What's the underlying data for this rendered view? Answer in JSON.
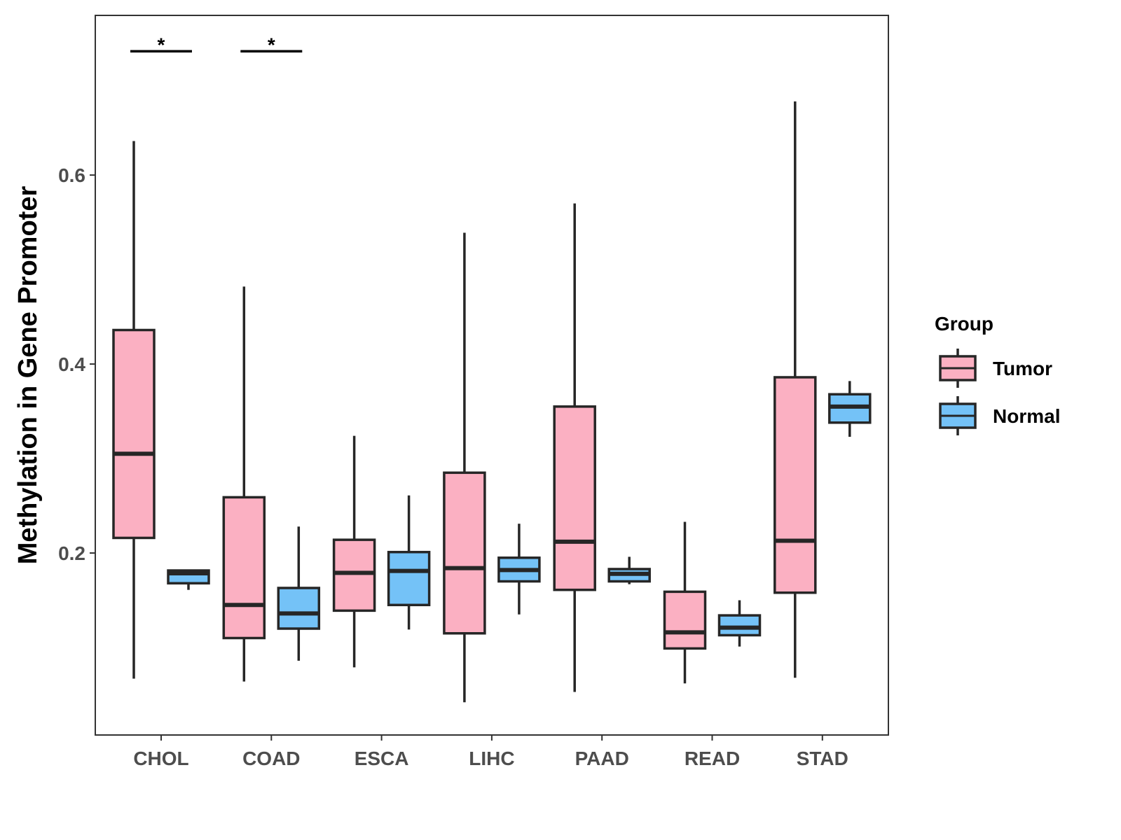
{
  "chart_data": {
    "type": "box",
    "title": "",
    "xlabel": "",
    "ylabel": "Methylation in Gene Promoter",
    "ylim": [
      0.0074,
      0.769
    ],
    "yticks": [
      0.2,
      0.4,
      0.6
    ],
    "ytick_labels": [
      "0.2",
      "0.4",
      "0.6"
    ],
    "categories": [
      "CHOL",
      "COAD",
      "ESCA",
      "LIHC",
      "PAAD",
      "READ",
      "STAD"
    ],
    "legend": {
      "title": "Group",
      "position": "right",
      "entries": [
        "Tumor",
        "Normal"
      ]
    },
    "colors": {
      "Tumor": "#FBB0C2",
      "Normal": "#74C2F7",
      "outline": "#262626"
    },
    "series": [
      {
        "name": "Tumor",
        "boxes": [
          {
            "min": 0.067,
            "q1": 0.216,
            "median": 0.305,
            "q3": 0.436,
            "max": 0.636
          },
          {
            "min": 0.064,
            "q1": 0.11,
            "median": 0.145,
            "q3": 0.259,
            "max": 0.482
          },
          {
            "min": 0.079,
            "q1": 0.139,
            "median": 0.179,
            "q3": 0.214,
            "max": 0.324
          },
          {
            "min": 0.042,
            "q1": 0.115,
            "median": 0.184,
            "q3": 0.285,
            "max": 0.539
          },
          {
            "min": 0.053,
            "q1": 0.161,
            "median": 0.212,
            "q3": 0.355,
            "max": 0.57
          },
          {
            "min": 0.062,
            "q1": 0.099,
            "median": 0.116,
            "q3": 0.159,
            "max": 0.233
          },
          {
            "min": 0.068,
            "q1": 0.158,
            "median": 0.213,
            "q3": 0.386,
            "max": 0.678
          }
        ]
      },
      {
        "name": "Normal",
        "boxes": [
          {
            "min": 0.161,
            "q1": 0.168,
            "median": 0.1785,
            "q3": 0.1815,
            "max": 0.1815
          },
          {
            "min": 0.086,
            "q1": 0.12,
            "median": 0.136,
            "q3": 0.163,
            "max": 0.228
          },
          {
            "min": 0.119,
            "q1": 0.145,
            "median": 0.181,
            "q3": 0.201,
            "max": 0.261
          },
          {
            "min": 0.135,
            "q1": 0.17,
            "median": 0.182,
            "q3": 0.195,
            "max": 0.231
          },
          {
            "min": 0.167,
            "q1": 0.17,
            "median": 0.178,
            "q3": 0.183,
            "max": 0.196
          },
          {
            "min": 0.101,
            "q1": 0.113,
            "median": 0.121,
            "q3": 0.134,
            "max": 0.15
          },
          {
            "min": 0.323,
            "q1": 0.338,
            "median": 0.355,
            "q3": 0.368,
            "max": 0.382
          }
        ]
      }
    ],
    "annotations": [
      {
        "category": "CHOL",
        "label": "*",
        "y": 0.731
      },
      {
        "category": "COAD",
        "label": "*",
        "y": 0.731
      }
    ]
  }
}
